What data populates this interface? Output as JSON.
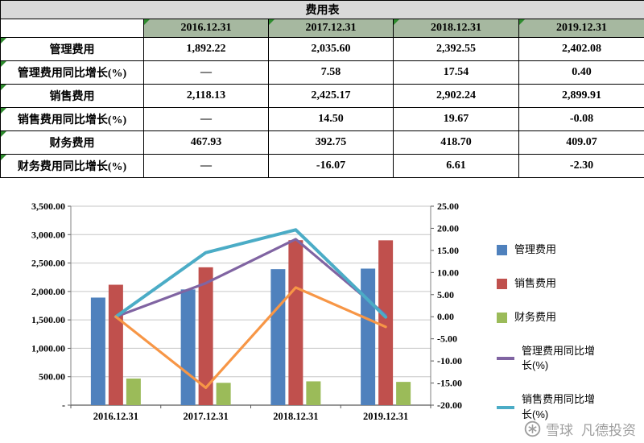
{
  "table": {
    "title": "费用表",
    "col_headers": [
      "2016.12.31",
      "2017.12.31",
      "2018.12.31",
      "2019.12.31"
    ],
    "rows": [
      {
        "label": "管理费用",
        "values": [
          "1,892.22",
          "2,035.60",
          "2,392.55",
          "2,402.08"
        ]
      },
      {
        "label": "管理费用同比增长(%)",
        "values": [
          "—",
          "7.58",
          "17.54",
          "0.40"
        ]
      },
      {
        "label": "销售费用",
        "values": [
          "2,118.13",
          "2,425.17",
          "2,902.24",
          "2,899.91"
        ]
      },
      {
        "label": "销售费用同比增长(%)",
        "values": [
          "—",
          "14.50",
          "19.67",
          "-0.08"
        ]
      },
      {
        "label": "财务费用",
        "values": [
          "467.93",
          "392.75",
          "418.70",
          "409.07"
        ]
      },
      {
        "label": "财务费用同比增长(%)",
        "values": [
          "—",
          "-16.07",
          "6.61",
          "-2.30"
        ]
      }
    ]
  },
  "chart_data": {
    "type": "bar+line",
    "categories": [
      "2016.12.31",
      "2017.12.31",
      "2018.12.31",
      "2019.12.31"
    ],
    "bar_series": [
      {
        "name": "管理费用",
        "color": "#4F81BD",
        "values": [
          1892.22,
          2035.6,
          2392.55,
          2402.08
        ]
      },
      {
        "name": "销售费用",
        "color": "#C0504D",
        "values": [
          2118.13,
          2425.17,
          2902.24,
          2899.91
        ]
      },
      {
        "name": "财务费用",
        "color": "#9BBB59",
        "values": [
          467.93,
          392.75,
          418.7,
          409.07
        ]
      }
    ],
    "line_series": [
      {
        "name": "管理费用同比增长(%)",
        "color": "#8064A2",
        "values": [
          0,
          7.58,
          17.54,
          0.4
        ],
        "in_legend": true
      },
      {
        "name": "销售费用同比增长(%)",
        "color": "#4BACC6",
        "values": [
          0,
          14.5,
          19.67,
          -0.08
        ],
        "in_legend": true
      },
      {
        "name": "财务费用同比增长(%)",
        "color": "#F79646",
        "values": [
          0,
          -16.07,
          6.61,
          -2.3
        ],
        "in_legend": false
      }
    ],
    "left_axis": {
      "min": 0,
      "max": 3500,
      "step": 500,
      "labels": [
        "3,500.00",
        "3,000.00",
        "2,500.00",
        "2,000.00",
        "1,500.00",
        "1,000.00",
        "500.00",
        "-"
      ]
    },
    "right_axis": {
      "min": -20,
      "max": 25,
      "step": 5,
      "labels": [
        "25.00",
        "20.00",
        "15.00",
        "10.00",
        "5.00",
        "0.00",
        "-5.00",
        "-10.00",
        "-15.00",
        "-20.00"
      ]
    },
    "legend_position": "right",
    "grid": true
  },
  "colors": {
    "table_title_fill": "#D9D9D9",
    "table_header_fill": "#A6B8A0",
    "comment_triangle": "#2E8B2E",
    "gridline": "#C6C6C6",
    "axis_line": "#808080"
  },
  "watermark": {
    "site": "雪球",
    "author": "凡德投资"
  }
}
